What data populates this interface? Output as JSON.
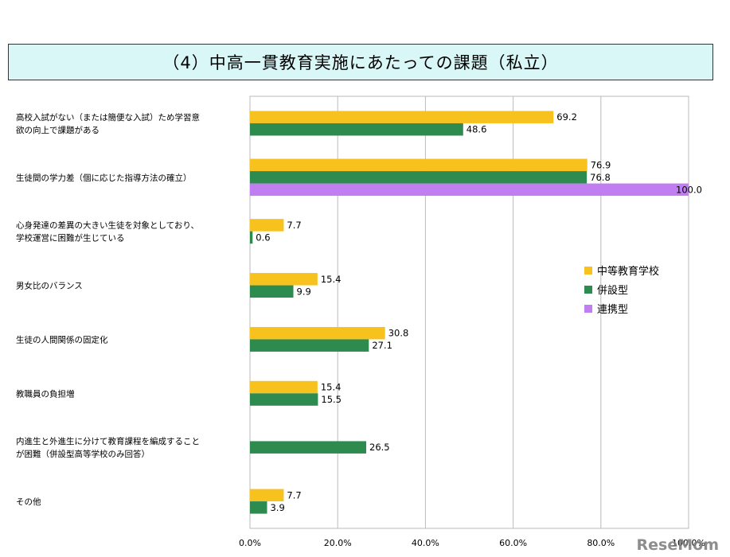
{
  "chart_data": {
    "type": "bar",
    "orientation": "horizontal",
    "title": "（4）中高一貫教育実施にあたっての課題（私立）",
    "categories": [
      [
        "高校入試がない（または簡便な入試）ため学習意",
        "欲の向上で課題がある"
      ],
      [
        "生徒間の学力差（個に応じた指導方法の確立）"
      ],
      [
        "心身発達の差異の大きい生徒を対象としており、",
        "学校運営に困難が生じている"
      ],
      [
        "男女比のバランス"
      ],
      [
        "生徒の人間関係の固定化"
      ],
      [
        "教職員の負担増"
      ],
      [
        "内進生と外進生に分けて教育課程を編成すること",
        "が困難（併設型高等学校のみ回答）"
      ],
      [
        "その他"
      ]
    ],
    "series": [
      {
        "name": "中等教育学校",
        "color": "#f7c21d",
        "values": [
          69.2,
          76.9,
          7.7,
          15.4,
          30.8,
          15.4,
          null,
          7.7
        ]
      },
      {
        "name": "併設型",
        "color": "#2e8b4f",
        "values": [
          48.6,
          76.8,
          0.6,
          9.9,
          27.1,
          15.5,
          26.5,
          3.9
        ]
      },
      {
        "name": "連携型",
        "color": "#c07ef0",
        "values": [
          null,
          100.0,
          null,
          null,
          null,
          null,
          null,
          null
        ]
      }
    ],
    "labels": [
      [
        "69.2",
        "76.9",
        "7.7",
        "15.4",
        "30.8",
        "15.4",
        "",
        "7.7"
      ],
      [
        "48.6",
        "76.8",
        "0.6",
        "9.9",
        "27.1",
        "15.5",
        "26.5",
        "3.9"
      ],
      [
        "",
        "100.0",
        "",
        "",
        "",
        "",
        "",
        ""
      ]
    ],
    "xlim": [
      0,
      100
    ],
    "xticks": [
      "0.0%",
      "20.0%",
      "40.0%",
      "60.0%",
      "80.0%",
      "100.0%"
    ],
    "grid": true,
    "legend_position": "right"
  },
  "watermark": "ReseMom"
}
